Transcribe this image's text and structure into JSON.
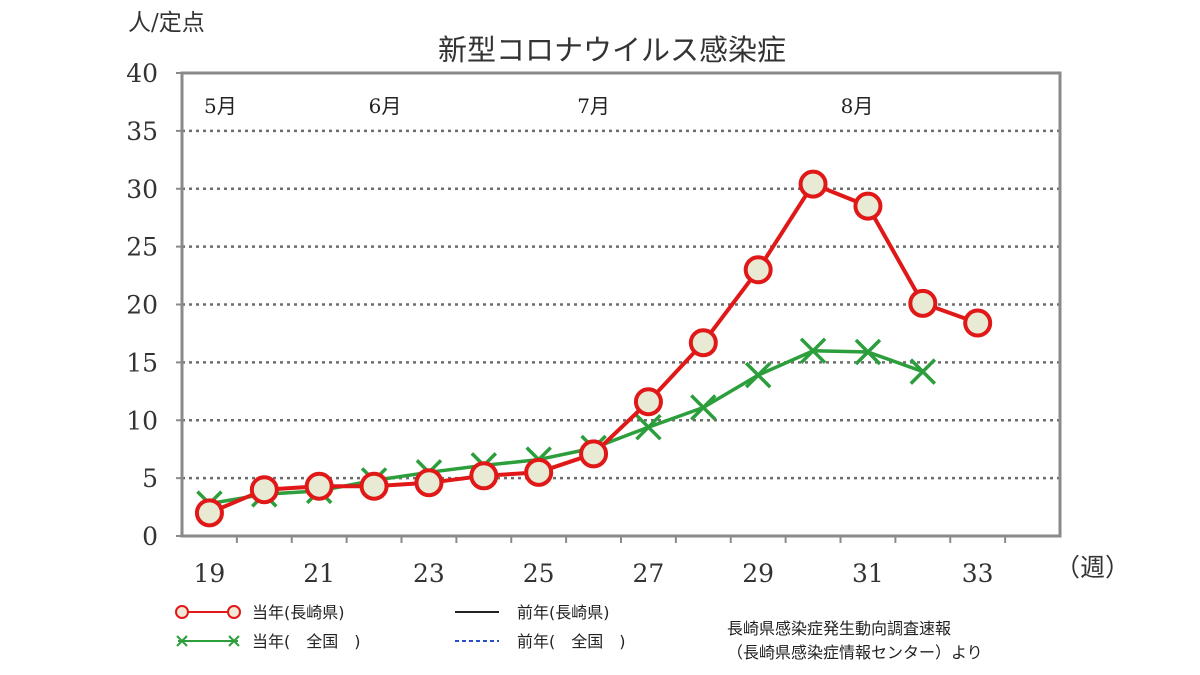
{
  "chart_data": {
    "type": "line",
    "title": "新型コロナウイルス感染症",
    "ylabel": "人/定点",
    "xlabel": "（週）",
    "ylim": [
      0,
      40
    ],
    "yticks": [
      "0",
      "5",
      "10",
      "15",
      "20",
      "25",
      "30",
      "35",
      "40"
    ],
    "xlim": [
      18.5,
      34.5
    ],
    "xticks": [
      "19",
      "21",
      "23",
      "25",
      "27",
      "29",
      "31",
      "33"
    ],
    "month_labels": [
      {
        "week": 19.2,
        "label": "5月"
      },
      {
        "week": 22.2,
        "label": "6月"
      },
      {
        "week": 26.0,
        "label": "7月"
      },
      {
        "week": 30.8,
        "label": "8月"
      }
    ],
    "x": [
      19,
      20,
      21,
      22,
      23,
      24,
      25,
      26,
      27,
      28,
      29,
      30,
      31,
      32,
      33
    ],
    "series": [
      {
        "name": "当年(長崎県)",
        "color": "#e01818",
        "marker": "circle",
        "values": [
          2.0,
          4.0,
          4.3,
          4.3,
          4.6,
          5.2,
          5.5,
          7.1,
          11.6,
          16.7,
          23.0,
          30.4,
          28.5,
          20.1,
          18.4
        ]
      },
      {
        "name": "当年(全国)",
        "color": "#2c9e3c",
        "marker": "x",
        "values": [
          2.8,
          3.6,
          3.9,
          4.8,
          5.5,
          6.1,
          6.6,
          7.6,
          9.4,
          11.1,
          13.9,
          16.0,
          15.9,
          14.2,
          null
        ]
      }
    ],
    "legend": [
      {
        "label": "当年(長崎県)",
        "style": "red-circle-line"
      },
      {
        "label": "前年(長崎県)",
        "style": "black-solid-line"
      },
      {
        "label": "当年(　全国　)",
        "style": "green-x-line"
      },
      {
        "label": "前年(　全国　)",
        "style": "blue-dashed-line"
      }
    ],
    "grid": "horizontal-dotted",
    "source": [
      "長崎県感染症発生動向調査速報",
      "（長崎県感染症情報センター）より"
    ]
  }
}
